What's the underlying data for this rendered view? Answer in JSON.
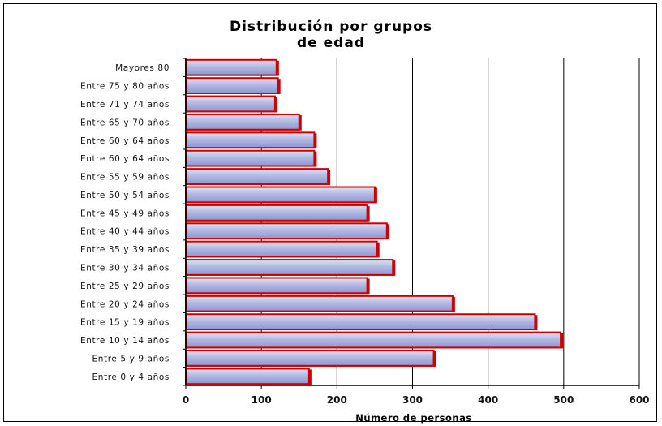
{
  "chart_data": {
    "type": "bar",
    "orientation": "horizontal",
    "title_lines": [
      "Distribución por grupos",
      "de edad"
    ],
    "xlabel": "Número de personas",
    "ylabel": "",
    "xlim": [
      0,
      600
    ],
    "xticks": [
      0,
      100,
      200,
      300,
      400,
      500,
      600
    ],
    "grid": "vertical",
    "legend": "none",
    "categories": [
      "Mayores 80",
      "Entre 75 y 80 años",
      "Entre 71 y 74 años",
      "Entre 65 y 70 años",
      "Entre 60 y 64 años",
      "Entre 60 y 64 años",
      "Entre 55 y 59 años",
      "Entre 50 y 54 años",
      "Entre 45 y 49 años",
      "Entre 40 y 44 años",
      "Entre 35 y 39 años",
      "Entre 30 y 34 años",
      "Entre 25 y 29 años",
      "Entre 20 y 24 años",
      "Entre 15 y 19 años",
      "Entre 10 y 14 años",
      "Entre 5 y 9 años",
      "Entre 0 y 4 años"
    ],
    "values": [
      120,
      122,
      118,
      150,
      170,
      170,
      188,
      250,
      240,
      266,
      253,
      274,
      240,
      353,
      462,
      496,
      328,
      163
    ],
    "colors": {
      "bar_fill_light": "#dfe3f6",
      "bar_fill_mid": "#b3b9e2",
      "bar_fill_dark": "#8e95cf",
      "bar_border": "#cc0000",
      "grid": "#000000",
      "axis": "#000000"
    }
  }
}
